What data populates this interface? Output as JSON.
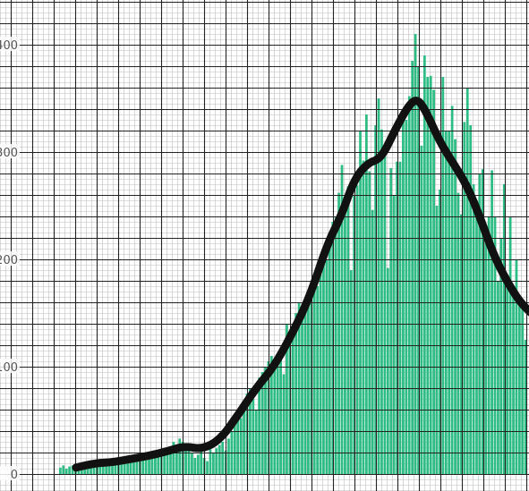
{
  "chart_data": {
    "type": "bar",
    "title": "",
    "xlabel": "",
    "ylabel": "",
    "y_ticks": [
      "0",
      "100",
      "200",
      "300",
      "400"
    ],
    "y_tick_values": [
      0,
      100,
      200,
      300,
      400
    ],
    "ylim": [
      -12,
      430
    ],
    "grid": true,
    "legend": "none",
    "colors": {
      "bars": "#2dbd84",
      "line": "#111111",
      "grid_minor": "#bdbdbd",
      "grid_major": "#222222",
      "background": "#ffffff"
    },
    "bar_values": [
      6,
      8,
      5,
      7,
      8,
      9,
      10,
      9,
      8,
      12,
      10,
      9,
      11,
      14,
      13,
      10,
      9,
      12,
      8,
      11,
      13,
      12,
      14,
      11,
      15,
      13,
      12,
      17,
      18,
      16,
      20,
      19,
      17,
      22,
      21,
      24,
      25,
      30,
      27,
      33,
      30,
      28,
      24,
      20,
      15,
      18,
      21,
      15,
      12,
      23,
      20,
      24,
      27,
      30,
      22,
      33,
      40,
      55,
      60,
      52,
      67,
      75,
      80,
      70,
      60,
      90,
      95,
      100,
      105,
      110,
      98,
      104,
      110,
      93,
      140,
      126,
      135,
      150,
      160,
      156,
      152,
      162,
      170,
      180,
      175,
      190,
      210,
      200,
      215,
      235,
      240,
      262,
      288,
      248,
      268,
      190,
      260,
      269,
      320,
      292,
      335,
      282,
      246,
      325,
      350,
      321,
      304,
      192,
      285,
      260,
      291,
      291,
      340,
      330,
      352,
      385,
      410,
      380,
      306,
      390,
      370,
      371,
      358,
      250,
      265,
      370,
      320,
      320,
      343,
      312,
      262,
      242,
      328,
      360,
      325,
      270,
      255,
      280,
      284,
      230,
      240,
      283,
      240,
      180,
      220,
      270,
      185,
      240,
      175,
      200,
      165,
      155,
      125
    ],
    "trend_line": [
      {
        "x": 19,
        "y": 6
      },
      {
        "x": 40,
        "y": 10
      },
      {
        "x": 60,
        "y": 11
      },
      {
        "x": 80,
        "y": 14
      },
      {
        "x": 100,
        "y": 17
      },
      {
        "x": 120,
        "y": 21
      },
      {
        "x": 140,
        "y": 26
      },
      {
        "x": 160,
        "y": 23
      },
      {
        "x": 180,
        "y": 32
      },
      {
        "x": 200,
        "y": 55
      },
      {
        "x": 220,
        "y": 80
      },
      {
        "x": 240,
        "y": 100
      },
      {
        "x": 260,
        "y": 130
      },
      {
        "x": 280,
        "y": 165
      },
      {
        "x": 300,
        "y": 215
      },
      {
        "x": 315,
        "y": 240
      },
      {
        "x": 330,
        "y": 275
      },
      {
        "x": 345,
        "y": 290
      },
      {
        "x": 360,
        "y": 294
      },
      {
        "x": 375,
        "y": 320
      },
      {
        "x": 390,
        "y": 343
      },
      {
        "x": 400,
        "y": 350
      },
      {
        "x": 410,
        "y": 338
      },
      {
        "x": 425,
        "y": 310
      },
      {
        "x": 440,
        "y": 290
      },
      {
        "x": 455,
        "y": 270
      },
      {
        "x": 470,
        "y": 240
      },
      {
        "x": 485,
        "y": 205
      },
      {
        "x": 500,
        "y": 180
      },
      {
        "x": 515,
        "y": 160
      },
      {
        "x": 530,
        "y": 148
      }
    ]
  }
}
